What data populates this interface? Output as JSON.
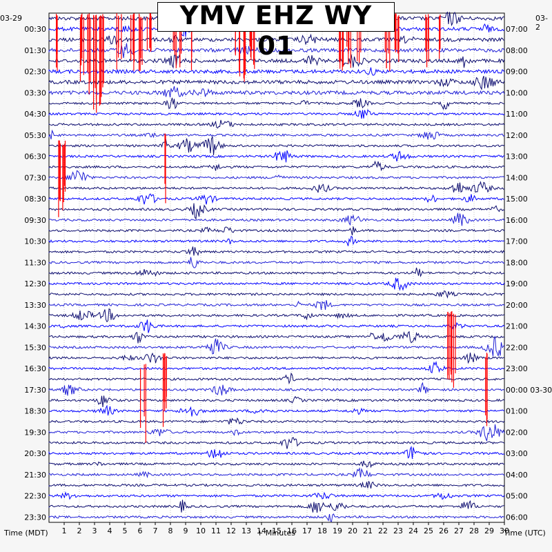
{
  "chart_data": {
    "type": "line",
    "title": "YMV EHZ WY 01",
    "xlabel": "+ Minutes",
    "left_axis_label": "Time (MDT)",
    "right_axis_label": "Time (UTC)",
    "left_date": "03-29",
    "right_date": "03-2",
    "right_date_rollover": "03-30",
    "xlim": [
      0,
      30
    ],
    "x_ticks": [
      1,
      2,
      3,
      4,
      5,
      6,
      7,
      8,
      9,
      10,
      11,
      12,
      13,
      14,
      15,
      16,
      17,
      18,
      19,
      20,
      21,
      22,
      23,
      24,
      25,
      26,
      27,
      28,
      29,
      30
    ],
    "rows_per_hour": 2,
    "row_count": 48,
    "row_colors": [
      "#0a0a6e",
      "#0000ff",
      "#0a0a6e",
      "#1f1fd6"
    ],
    "clip_color": "#ff0000",
    "left_labels": [
      "00:30",
      "01:30",
      "02:30",
      "03:30",
      "04:30",
      "05:30",
      "06:30",
      "07:30",
      "08:30",
      "09:30",
      "10:30",
      "11:30",
      "12:30",
      "13:30",
      "14:30",
      "15:30",
      "16:30",
      "17:30",
      "18:30",
      "19:30",
      "20:30",
      "21:30",
      "22:30",
      "23:30"
    ],
    "right_labels": [
      "07:00",
      "08:00",
      "09:00",
      "10:00",
      "11:00",
      "12:00",
      "13:00",
      "14:00",
      "15:00",
      "16:00",
      "17:00",
      "18:00",
      "19:00",
      "20:00",
      "21:00",
      "22:00",
      "23:00",
      "00:00 03-30",
      "01:00",
      "02:00",
      "03:00",
      "04:00",
      "05:00",
      "06:00"
    ],
    "grid": true
  }
}
